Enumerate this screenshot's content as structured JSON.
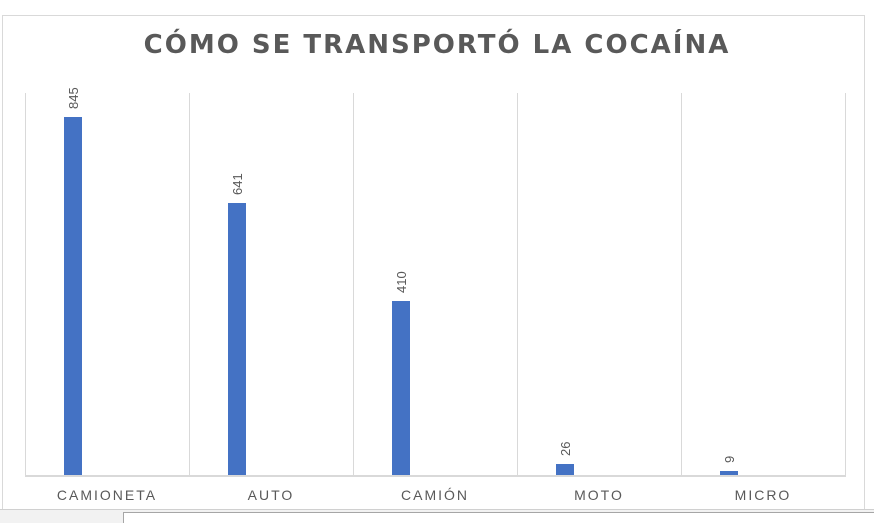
{
  "chart_data": {
    "type": "bar",
    "title": "CÓMO SE TRANSPORTÓ LA COCAÍNA",
    "categories": [
      "CAMIONETA",
      "AUTO",
      "CAMIÓN",
      "MOTO",
      "MICRO"
    ],
    "values": [
      845,
      641,
      410,
      26,
      9
    ],
    "data_labels": [
      "845",
      "641",
      "410",
      "26",
      "9"
    ],
    "xlabel": "",
    "ylabel": "",
    "ylim": [
      0,
      900
    ],
    "grid": "vertical category separators",
    "legend": "none",
    "bar_color": "#4472C4"
  },
  "colors": {
    "bar": "#4472C4",
    "text": "#595959",
    "grid": "#d9d9d9"
  }
}
